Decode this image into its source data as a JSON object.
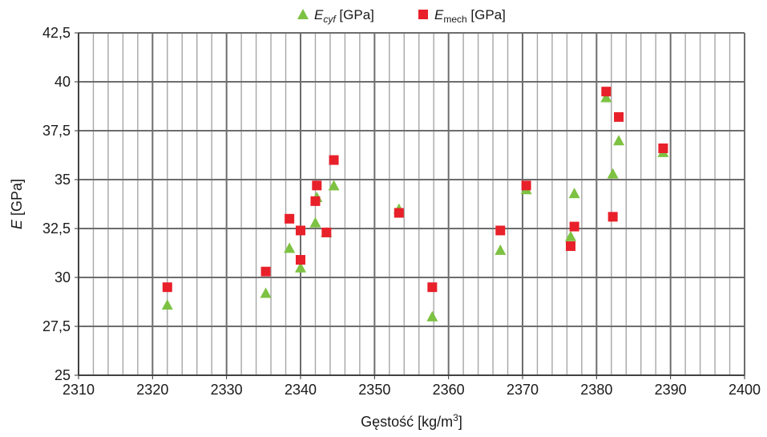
{
  "colors": {
    "ecyf": "#7dc242",
    "emech": "#e8202a",
    "grid_major": "#6d6d6d",
    "grid_minor": "#a6a6a6",
    "axis": "#333333"
  },
  "chart_data": {
    "type": "scatter",
    "title": "",
    "xlabel": {
      "main": "Gęstość  [kg/m",
      "sup": "3",
      "tail": "]"
    },
    "ylabel": {
      "italic": "E",
      "rest": " [GPa]"
    },
    "xlim": [
      2310,
      2400
    ],
    "ylim": [
      25,
      42.5
    ],
    "x_ticks": [
      2310,
      2320,
      2330,
      2340,
      2350,
      2360,
      2370,
      2380,
      2390,
      2400
    ],
    "y_ticks": [
      25,
      27.5,
      30,
      32.5,
      35,
      37.5,
      40,
      42.5
    ],
    "x_tick_labels": [
      "2310",
      "2320",
      "2330",
      "2340",
      "2350",
      "2360",
      "2370",
      "2380",
      "2390",
      "2400"
    ],
    "y_tick_labels": [
      "25",
      "27,5",
      "30",
      "32,5",
      "35",
      "37,5",
      "40",
      "42,5"
    ],
    "x_minor_step": 2,
    "grid": true,
    "legend_position": "top-center",
    "series": [
      {
        "key": "ecyf",
        "legend": {
          "italic": "E",
          "sub": "cyf",
          "rest": " [GPa]"
        },
        "marker": "triangle",
        "points": [
          [
            2322,
            28.6
          ],
          [
            2335.3,
            29.2
          ],
          [
            2338.5,
            31.5
          ],
          [
            2340,
            30.5
          ],
          [
            2342,
            32.8
          ],
          [
            2342.2,
            34.1
          ],
          [
            2343.5,
            32.3
          ],
          [
            2344.5,
            34.7
          ],
          [
            2353.3,
            33.5
          ],
          [
            2357.8,
            28.0
          ],
          [
            2367,
            31.4
          ],
          [
            2370.5,
            34.5
          ],
          [
            2376.5,
            32.1
          ],
          [
            2377,
            34.3
          ],
          [
            2381.3,
            39.2
          ],
          [
            2382.2,
            35.3
          ],
          [
            2383,
            37.0
          ],
          [
            2389,
            36.4
          ]
        ]
      },
      {
        "key": "emech",
        "legend": {
          "italic": "E",
          "sub": "mech",
          "rest": " [GPa]"
        },
        "marker": "square",
        "points": [
          [
            2322,
            29.5
          ],
          [
            2335.3,
            30.3
          ],
          [
            2338.5,
            33.0
          ],
          [
            2340,
            32.4
          ],
          [
            2340,
            30.9
          ],
          [
            2342,
            33.9
          ],
          [
            2342.2,
            34.7
          ],
          [
            2343.5,
            32.3
          ],
          [
            2344.5,
            36.0
          ],
          [
            2353.3,
            33.3
          ],
          [
            2357.8,
            29.5
          ],
          [
            2367,
            32.4
          ],
          [
            2370.5,
            34.7
          ],
          [
            2376.5,
            31.6
          ],
          [
            2377,
            32.6
          ],
          [
            2381.3,
            39.5
          ],
          [
            2382.2,
            33.1
          ],
          [
            2383,
            38.2
          ],
          [
            2389,
            36.6
          ]
        ]
      }
    ]
  }
}
